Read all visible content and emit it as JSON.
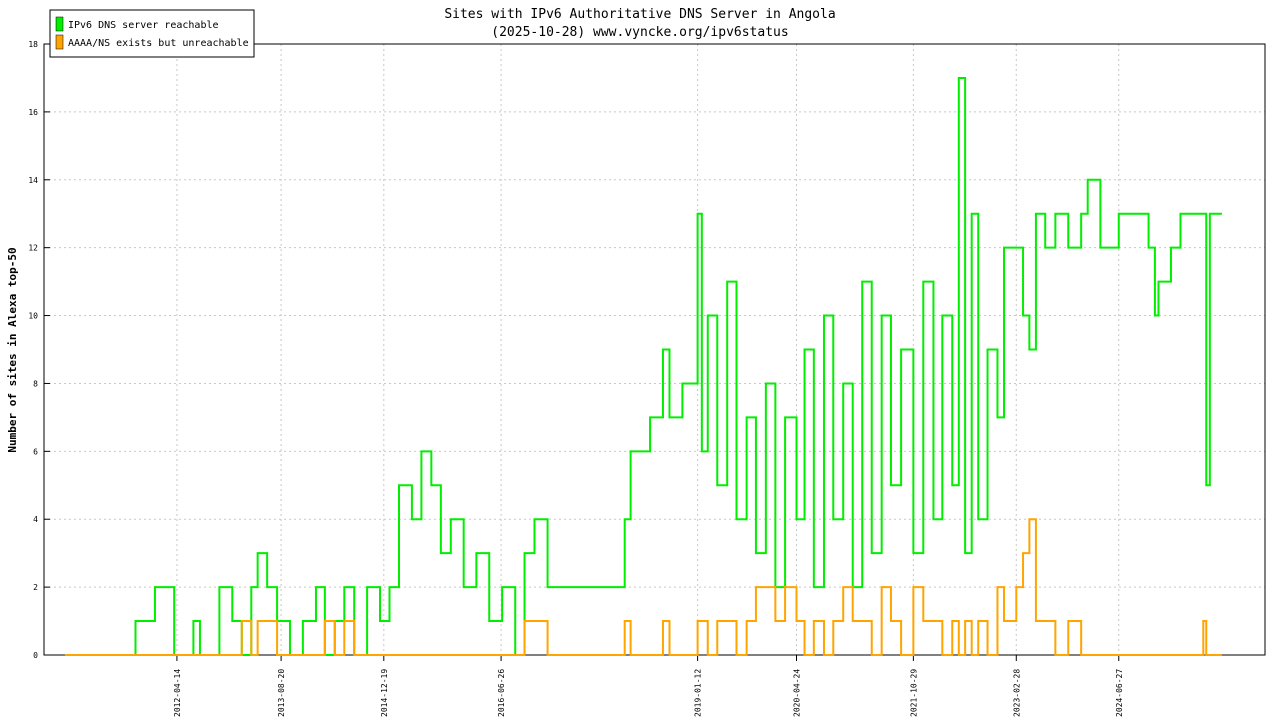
{
  "chart_data": {
    "type": "line",
    "step": true,
    "title": "Sites with IPv6 Authoritative DNS Server in Angola",
    "subtitle": "(2025-10-28) www.vyncke.org/ipv6status",
    "y_label": "Number of sites in Alexa top-50",
    "grid": true,
    "legend": "upper-left",
    "x": [
      "2010-11-01",
      "2011-09-10",
      "2011-10-01",
      "2012-01-01",
      "2012-04-01",
      "2012-07-01",
      "2012-08-01",
      "2012-11-01",
      "2013-01-01",
      "2013-02-15",
      "2013-04-01",
      "2013-05-01",
      "2013-06-15",
      "2013-08-01",
      "2013-10-01",
      "2013-12-01",
      "2014-02-01",
      "2014-03-15",
      "2014-05-01",
      "2014-06-15",
      "2014-08-01",
      "2014-10-01",
      "2014-12-01",
      "2015-01-15",
      "2015-03-01",
      "2015-05-01",
      "2015-06-15",
      "2015-08-01",
      "2015-09-15",
      "2015-11-01",
      "2016-01-01",
      "2016-03-01",
      "2016-05-01",
      "2016-07-01",
      "2016-09-01",
      "2016-10-15",
      "2016-12-01",
      "2017-02-01",
      "2017-04-01",
      "2018-02-01",
      "2018-03-01",
      "2018-06-01",
      "2018-08-01",
      "2018-09-01",
      "2018-11-01",
      "2019-01-12",
      "2019-02-01",
      "2019-03-01",
      "2019-04-15",
      "2019-06-01",
      "2019-07-15",
      "2019-09-01",
      "2019-10-15",
      "2019-12-01",
      "2020-01-15",
      "2020-03-01",
      "2020-04-24",
      "2020-06-01",
      "2020-07-15",
      "2020-09-01",
      "2020-10-15",
      "2020-12-01",
      "2021-01-15",
      "2021-03-01",
      "2021-04-15",
      "2021-06-01",
      "2021-07-15",
      "2021-09-01",
      "2021-10-29",
      "2021-12-15",
      "2022-02-01",
      "2022-03-15",
      "2022-05-01",
      "2022-06-01",
      "2022-07-01",
      "2022-08-01",
      "2022-09-01",
      "2022-10-15",
      "2022-12-01",
      "2023-01-01",
      "2023-02-28",
      "2023-04-01",
      "2023-05-01",
      "2023-06-01",
      "2023-07-15",
      "2023-09-01",
      "2023-11-01",
      "2024-01-01",
      "2024-02-01",
      "2024-04-01",
      "2024-06-27",
      "2024-10-01",
      "2024-11-15",
      "2024-12-15",
      "2025-01-01",
      "2025-03-01",
      "2025-04-15",
      "2025-07-01",
      "2025-08-01",
      "2025-08-15",
      "2025-09-01",
      "2025-10-28"
    ],
    "series": [
      {
        "name": "IPv6 DNS server reachable",
        "color": "#00ee00",
        "values": [
          0,
          0,
          1,
          2,
          0,
          1,
          0,
          2,
          1,
          0,
          2,
          3,
          2,
          1,
          0,
          1,
          2,
          0,
          1,
          2,
          0,
          2,
          1,
          2,
          5,
          4,
          6,
          5,
          3,
          4,
          2,
          3,
          1,
          2,
          0,
          3,
          4,
          2,
          2,
          4,
          6,
          7,
          9,
          7,
          8,
          13,
          6,
          10,
          5,
          11,
          4,
          7,
          3,
          8,
          2,
          7,
          4,
          9,
          2,
          10,
          4,
          8,
          2,
          11,
          3,
          10,
          5,
          9,
          3,
          11,
          4,
          10,
          5,
          17,
          3,
          13,
          4,
          9,
          7,
          12,
          12,
          10,
          9,
          13,
          12,
          13,
          12,
          13,
          14,
          12,
          13,
          13,
          12,
          10,
          11,
          12,
          13,
          13,
          13,
          5,
          13,
          13
        ]
      },
      {
        "name": "AAAA/NS exists but unreachable",
        "color": "#ffa500",
        "values": [
          0,
          0,
          0,
          0,
          0,
          0,
          0,
          0,
          0,
          1,
          0,
          1,
          1,
          0,
          0,
          0,
          0,
          1,
          0,
          1,
          0,
          0,
          0,
          0,
          0,
          0,
          0,
          0,
          0,
          0,
          0,
          0,
          0,
          0,
          0,
          1,
          1,
          0,
          0,
          1,
          0,
          0,
          1,
          0,
          0,
          1,
          1,
          0,
          1,
          1,
          0,
          1,
          2,
          2,
          1,
          2,
          1,
          0,
          1,
          0,
          1,
          2,
          1,
          1,
          0,
          2,
          1,
          0,
          2,
          1,
          1,
          0,
          1,
          0,
          1,
          0,
          1,
          0,
          2,
          1,
          2,
          3,
          4,
          1,
          1,
          0,
          1,
          0,
          0,
          0,
          0,
          0,
          0,
          0,
          0,
          0,
          0,
          0,
          1,
          0,
          0,
          0
        ]
      }
    ],
    "xlim": [
      "2010-07-25",
      "2026-05-20"
    ],
    "xticks": [
      "2012-04-14",
      "2013-08-20",
      "2014-12-19",
      "2016-06-26",
      "2019-01-12",
      "2020-04-24",
      "2021-10-29",
      "2023-02-28",
      "2024-06-27"
    ],
    "ylim": [
      0,
      18
    ],
    "yticks": [
      0,
      2,
      4,
      6,
      8,
      10,
      12,
      14,
      16,
      18
    ]
  }
}
